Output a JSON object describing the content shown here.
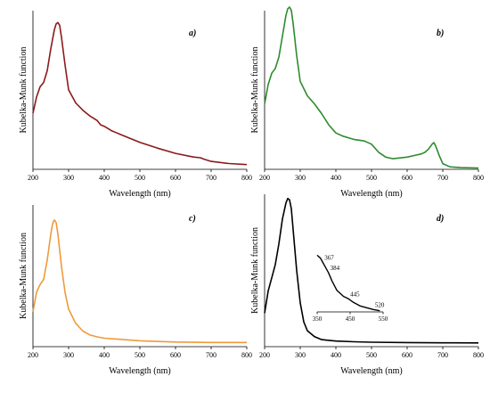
{
  "chart_data": [
    {
      "type": "line",
      "panel": "a)",
      "xlabel": "Wavelength (nm)",
      "ylabel": "Kubelka-Munk function",
      "xlim": [
        200,
        800
      ],
      "xticks": [
        200,
        300,
        400,
        500,
        600,
        700,
        800
      ],
      "ylim": [
        0,
        1
      ],
      "y_ticks_shown": false,
      "grid": false,
      "color": "#8b1a1a",
      "x": [
        200,
        210,
        220,
        230,
        240,
        250,
        260,
        265,
        270,
        275,
        280,
        290,
        300,
        320,
        340,
        360,
        380,
        390,
        400,
        420,
        450,
        500,
        550,
        600,
        650,
        670,
        680,
        700,
        750,
        800
      ],
      "values": [
        0.36,
        0.47,
        0.54,
        0.57,
        0.65,
        0.8,
        0.93,
        0.97,
        0.98,
        0.96,
        0.88,
        0.69,
        0.52,
        0.43,
        0.38,
        0.34,
        0.31,
        0.28,
        0.27,
        0.24,
        0.21,
        0.16,
        0.12,
        0.085,
        0.06,
        0.055,
        0.045,
        0.03,
        0.015,
        0.008
      ]
    },
    {
      "type": "line",
      "panel": "b)",
      "xlabel": "Wavelength (nm)",
      "ylabel": "Kubelka-Munk function",
      "xlim": [
        200,
        800
      ],
      "xticks": [
        200,
        300,
        400,
        500,
        600,
        700,
        800
      ],
      "ylim": [
        0,
        1
      ],
      "y_ticks_shown": false,
      "grid": false,
      "color": "#2e8b2e",
      "x": [
        200,
        210,
        220,
        230,
        240,
        250,
        260,
        265,
        270,
        275,
        280,
        290,
        300,
        320,
        340,
        360,
        380,
        400,
        420,
        450,
        480,
        500,
        520,
        540,
        560,
        580,
        600,
        620,
        640,
        650,
        660,
        670,
        675,
        680,
        690,
        700,
        720,
        750,
        800
      ],
      "values": [
        0.4,
        0.52,
        0.59,
        0.62,
        0.69,
        0.82,
        0.95,
        0.99,
        1.0,
        0.98,
        0.9,
        0.7,
        0.54,
        0.45,
        0.4,
        0.34,
        0.27,
        0.22,
        0.2,
        0.18,
        0.17,
        0.15,
        0.1,
        0.07,
        0.06,
        0.065,
        0.07,
        0.08,
        0.09,
        0.1,
        0.12,
        0.15,
        0.16,
        0.14,
        0.08,
        0.03,
        0.01,
        0.005,
        0.003
      ]
    },
    {
      "type": "line",
      "panel": "c)",
      "xlabel": "Wavelength (nm)",
      "ylabel": "Kubelka-Munk function",
      "xlim": [
        200,
        800
      ],
      "xticks": [
        200,
        300,
        400,
        500,
        600,
        700,
        800
      ],
      "ylim": [
        0,
        1
      ],
      "y_ticks_shown": false,
      "grid": false,
      "color": "#ee9a3a",
      "x": [
        200,
        210,
        220,
        230,
        240,
        250,
        255,
        260,
        265,
        270,
        280,
        290,
        300,
        320,
        340,
        360,
        380,
        400,
        450,
        500,
        600,
        700,
        800
      ],
      "values": [
        0.25,
        0.4,
        0.46,
        0.5,
        0.65,
        0.85,
        0.93,
        0.96,
        0.94,
        0.85,
        0.6,
        0.4,
        0.27,
        0.16,
        0.1,
        0.07,
        0.055,
        0.045,
        0.035,
        0.025,
        0.015,
        0.012,
        0.012
      ]
    },
    {
      "type": "line",
      "panel": "d)",
      "xlabel": "Wavelength (nm)",
      "ylabel": "Kubelka-Munk function",
      "xlim": [
        200,
        800
      ],
      "xticks": [
        200,
        300,
        400,
        500,
        600,
        700,
        800
      ],
      "ylim": [
        0,
        1
      ],
      "y_ticks_shown": false,
      "grid": false,
      "color": "#000000",
      "x": [
        200,
        210,
        220,
        230,
        240,
        250,
        260,
        265,
        270,
        275,
        280,
        290,
        300,
        310,
        320,
        340,
        360,
        380,
        400,
        450,
        500,
        600,
        700,
        800
      ],
      "values": [
        0.21,
        0.36,
        0.45,
        0.54,
        0.68,
        0.85,
        0.96,
        0.99,
        0.98,
        0.92,
        0.78,
        0.5,
        0.28,
        0.15,
        0.09,
        0.05,
        0.03,
        0.025,
        0.02,
        0.015,
        0.012,
        0.01,
        0.008,
        0.007
      ],
      "inset": {
        "type": "line",
        "xlim": [
          350,
          550
        ],
        "xticks": [
          350,
          450,
          550
        ],
        "tick_labels": [
          "350",
          "450",
          "550"
        ],
        "ylim": [
          0,
          1
        ],
        "color": "#000000",
        "x": [
          350,
          360,
          367,
          375,
          384,
          395,
          410,
          430,
          445,
          460,
          480,
          500,
          520,
          540
        ],
        "values": [
          0.95,
          0.9,
          0.83,
          0.75,
          0.66,
          0.52,
          0.36,
          0.26,
          0.22,
          0.16,
          0.1,
          0.07,
          0.04,
          0.02
        ],
        "annotations": [
          {
            "x": 367,
            "label": "367"
          },
          {
            "x": 384,
            "label": "384"
          },
          {
            "x": 445,
            "label": "445"
          },
          {
            "x": 520,
            "label": "520"
          }
        ]
      }
    }
  ]
}
